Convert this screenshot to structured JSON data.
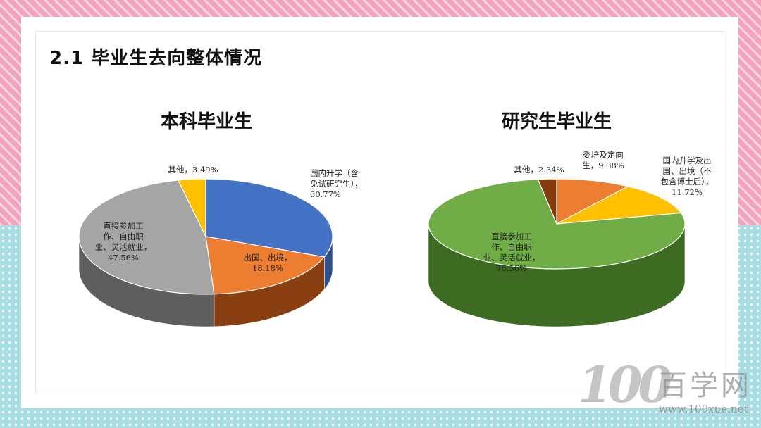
{
  "page_title": "2.1 毕业生去向整体情况",
  "watermark": {
    "number": "100",
    "name": "百学网",
    "url": "www.100xue.net"
  },
  "chart_data": [
    {
      "type": "pie",
      "title": "本科毕业生",
      "slices": [
        {
          "label": [
            "国内升学（含",
            "免试研究生），",
            "30.77%"
          ],
          "value": 30.77,
          "color": "#4472c4",
          "dark": "#2f4f8a"
        },
        {
          "label": [
            "出国、出境，",
            "18.18%"
          ],
          "value": 18.18,
          "color": "#ed7d31",
          "dark": "#8a3f12"
        },
        {
          "label": [
            "直接参加工",
            "作、自由职",
            "业、灵活就业，",
            "47.56%"
          ],
          "value": 47.56,
          "color": "#a5a5a5",
          "dark": "#5e5e5e"
        },
        {
          "label": [
            "其他，3.49%"
          ],
          "value": 3.49,
          "color": "#ffc000",
          "dark": "#b38600"
        }
      ]
    },
    {
      "type": "pie",
      "title": "研究生毕业生",
      "slices": [
        {
          "label": [
            "委培及定向",
            "生，9.38%"
          ],
          "value": 9.38,
          "color": "#ed7d31",
          "dark": "#8a3f12"
        },
        {
          "label": [
            "国内升学及出",
            "国、出境（不",
            "包含博士后），",
            "11.72%"
          ],
          "value": 11.72,
          "color": "#ffc000",
          "dark": "#b38600"
        },
        {
          "label": [
            "直接参加工",
            "作、自由职",
            "业、灵活就业，",
            "76.56%"
          ],
          "value": 76.56,
          "color": "#70ad47",
          "dark": "#3d6b22"
        },
        {
          "label": [
            "其他，2.34%"
          ],
          "value": 2.34,
          "color": "#843c0c",
          "dark": "#4a2006"
        }
      ]
    }
  ]
}
